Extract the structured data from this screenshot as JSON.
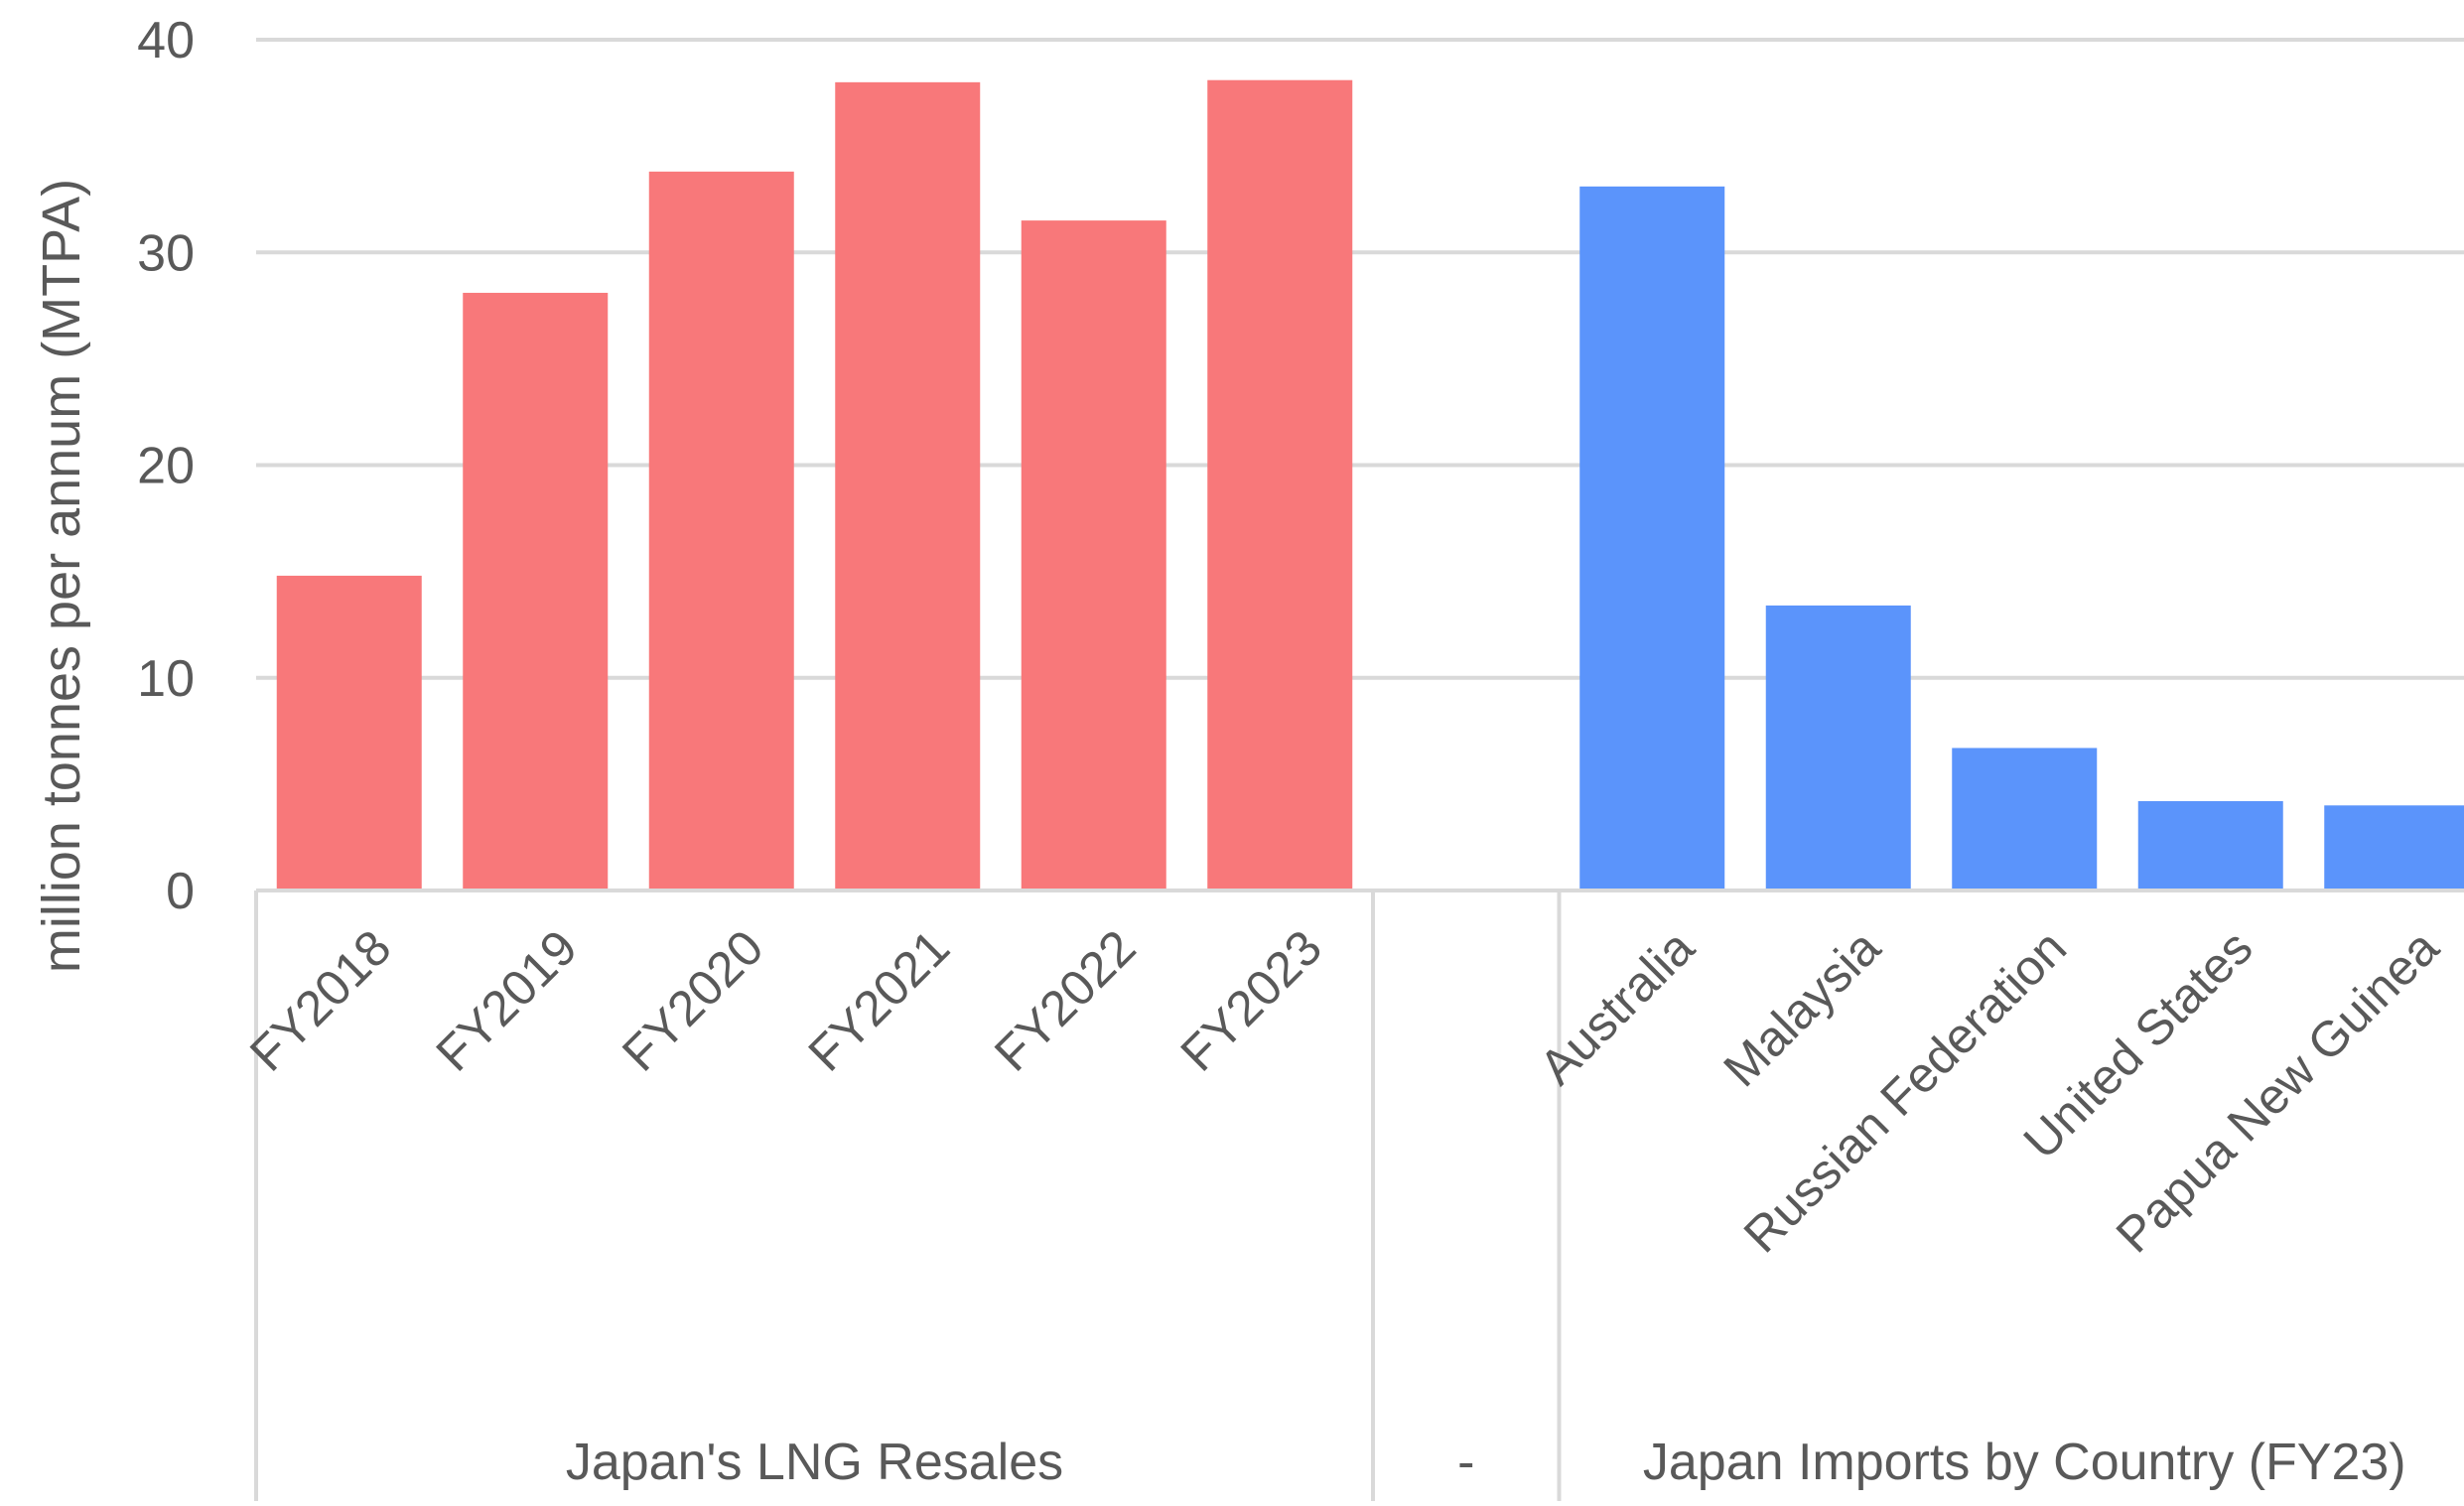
{
  "chart_data": {
    "type": "bar",
    "ylabel": "million tonnes per annum (MTPA)",
    "ylim": [
      0,
      40
    ],
    "yticks": [
      0,
      10,
      20,
      30,
      40
    ],
    "grid": true,
    "groups": [
      {
        "name": "Japan's LNG Resales",
        "color": "#F8787A",
        "categories": [
          "FY2018",
          "FY2019",
          "FY2020",
          "FY2021",
          "FY2022",
          "FY2023"
        ],
        "values": [
          14.8,
          28.1,
          33.8,
          38.0,
          31.5,
          38.1
        ]
      },
      {
        "name": "-",
        "color": "#5B94FB",
        "categories": [
          ""
        ],
        "values": [
          0
        ]
      },
      {
        "name": "Japan Imports by Country (FY23)",
        "color": "#5B94FB",
        "categories": [
          "Australia",
          "Malaysia",
          "Russian Federation",
          "United States",
          "Papua New Guinea"
        ],
        "values": [
          33.1,
          13.4,
          6.7,
          4.2,
          4.0
        ]
      }
    ]
  }
}
